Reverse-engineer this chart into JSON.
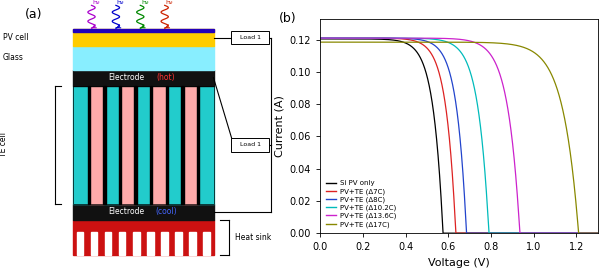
{
  "panel_b": {
    "title": "(b)",
    "xlabel": "Voltage (V)",
    "ylabel": "Current (A)",
    "xlim": [
      0.0,
      1.3
    ],
    "ylim": [
      0.0,
      0.133
    ],
    "yticks": [
      0.0,
      0.02,
      0.04,
      0.06,
      0.08,
      0.1,
      0.12
    ],
    "xticks": [
      0.0,
      0.2,
      0.4,
      0.6,
      0.8,
      1.0,
      1.2
    ],
    "curves": [
      {
        "label": "Si PV only",
        "color": "#000000",
        "voc": 0.575,
        "isc": 0.1205,
        "k": 22
      },
      {
        "label": "PV+TE (Δ7C)",
        "color": "#dd2222",
        "voc": 0.635,
        "isc": 0.121,
        "k": 22
      },
      {
        "label": "PV+TE (Δ8C)",
        "color": "#2244cc",
        "voc": 0.685,
        "isc": 0.121,
        "k": 22
      },
      {
        "label": "PV+TE (Δ10.2C)",
        "color": "#00bbbb",
        "voc": 0.79,
        "isc": 0.121,
        "k": 20
      },
      {
        "label": "PV+TE (Δ13.6C)",
        "color": "#cc22cc",
        "voc": 0.935,
        "isc": 0.121,
        "k": 18
      },
      {
        "label": "PV+TE (Δ17C)",
        "color": "#888800",
        "voc": 1.21,
        "isc": 0.1185,
        "k": 14
      }
    ]
  },
  "panel_a": {
    "title": "(a)",
    "pv_cell_label": "PV cell",
    "glass_label": "Glass",
    "te_cell_label": "TE cell",
    "electrode_hot_text": "Electrode",
    "hot_color_text": "(hot)",
    "electrode_cold_text": "Electrode",
    "cold_color_text": "(cool)",
    "heat_sink_label": "Heat sink",
    "load1_label": "Load 1",
    "load2_label": "Load 1",
    "pv_color": "#ffcc00",
    "glass_color": "#88eeff",
    "electrode_color": "#111111",
    "te_cyan": "#22cccc",
    "te_pink": "#ffaaaa",
    "te_black": "#111111",
    "heatsink_color": "#cc1111",
    "heatsink_fin_color": "#ffffff",
    "arrow_colors": [
      "#aa00cc",
      "#0000cc",
      "#008800",
      "#cc2200"
    ],
    "n_te_cols": 9,
    "n_fins": 10
  }
}
